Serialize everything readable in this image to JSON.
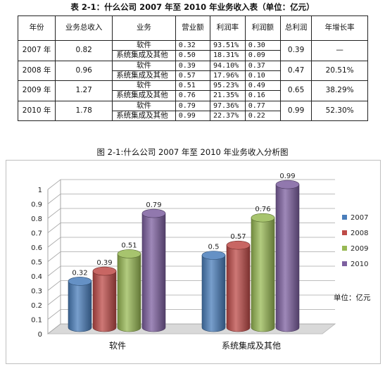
{
  "table": {
    "title": "表 2-1：什么公司 2007 年至 2010 年业务收入表（单位：亿元）",
    "headers": [
      "年份",
      "业务总收入",
      "业务",
      "营业额",
      "利润率",
      "利润额",
      "总利润",
      "年增长率"
    ],
    "rows": [
      {
        "year": "2007 年",
        "total": "0.82",
        "profit_total": "0.39",
        "growth": "—",
        "lines": [
          {
            "biz": "软件",
            "revenue": "0.32",
            "margin": "93.51%",
            "profit": "0.30"
          },
          {
            "biz": "系统集成及其他",
            "revenue": "0.50",
            "margin": "18.31%",
            "profit": "0.09"
          }
        ]
      },
      {
        "year": "2008 年",
        "total": "0.96",
        "profit_total": "0.47",
        "growth": "20.51%",
        "lines": [
          {
            "biz": "软件",
            "revenue": "0.39",
            "margin": "94.10%",
            "profit": "0.37"
          },
          {
            "biz": "系统集成及其他",
            "revenue": "0.57",
            "margin": "17.96%",
            "profit": "0.10"
          }
        ]
      },
      {
        "year": "2009 年",
        "total": "1.27",
        "profit_total": "0.65",
        "growth": "38.29%",
        "lines": [
          {
            "biz": "软件",
            "revenue": "0.51",
            "margin": "95.23%",
            "profit": "0.49"
          },
          {
            "biz": "系统集成及其他",
            "revenue": "0.76",
            "margin": "21.35%",
            "profit": "0.16"
          }
        ]
      },
      {
        "year": "2010 年",
        "total": "1.78",
        "profit_total": "0.99",
        "growth": "52.30%",
        "lines": [
          {
            "biz": "软件",
            "revenue": "0.79",
            "margin": "97.36%",
            "profit": "0.77"
          },
          {
            "biz": "系统集成及其他",
            "revenue": "0.99",
            "margin": "22.37%",
            "profit": "0.22"
          }
        ]
      }
    ]
  },
  "figure_title": "图 2-1:什么公司 2007 年至 2010 年业务收入分析图",
  "unit_label": "单位：亿元",
  "colors": {
    "2007": "#4a7ebb",
    "2008": "#be4b48",
    "2009": "#98b954",
    "2010": "#7d60a0"
  },
  "chart_data": {
    "type": "bar",
    "categories": [
      "软件",
      "系统集成及其他"
    ],
    "series": [
      {
        "name": "2007",
        "values": [
          0.32,
          0.5
        ]
      },
      {
        "name": "2008",
        "values": [
          0.39,
          0.57
        ]
      },
      {
        "name": "2009",
        "values": [
          0.51,
          0.76
        ]
      },
      {
        "name": "2010",
        "values": [
          0.79,
          0.99
        ]
      }
    ],
    "data_labels": [
      [
        "0.32",
        "0.5"
      ],
      [
        "0.39",
        "0.57"
      ],
      [
        "0.51",
        "0.76"
      ],
      [
        "0.79",
        "0.99"
      ]
    ],
    "ylim": [
      0,
      1
    ],
    "yticks": [
      "0",
      "0.1",
      "0.2",
      "0.3",
      "0.4",
      "0.5",
      "0.6",
      "0.7",
      "0.8",
      "0.9",
      "1"
    ],
    "grid": true,
    "legend_position": "right",
    "style": "3d-cylinder"
  }
}
